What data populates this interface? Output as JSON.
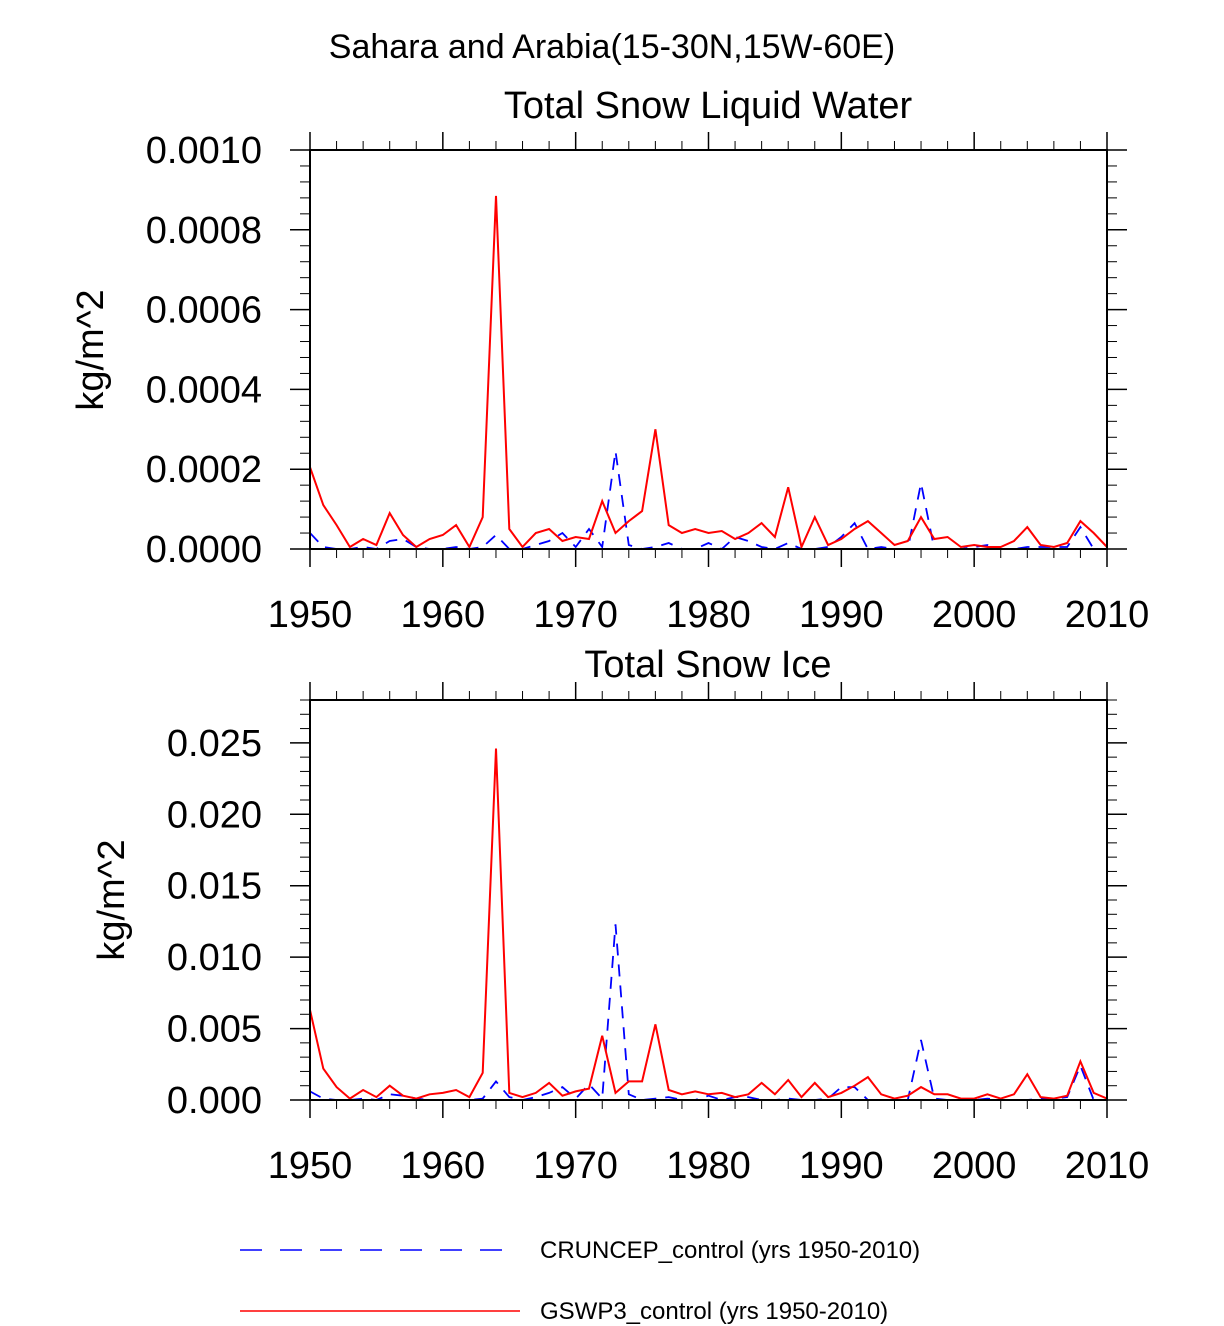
{
  "figure": {
    "supertitle": "Sahara and Arabia(15-30N,15W-60E)",
    "colors": {
      "cruncep": "#0000ff",
      "gswp3": "#ff0000",
      "axes": "#000000"
    }
  },
  "legend": {
    "placement": "bottom",
    "entries": [
      {
        "name": "CRUNCEP_control (yrs 1950-2010)",
        "color": "#0000ff",
        "style": "dashed"
      },
      {
        "name": "GSWP3_control (yrs 1950-2010)",
        "color": "#ff0000",
        "style": "solid"
      }
    ]
  },
  "chart_data": [
    {
      "type": "line",
      "title": "Total Snow Liquid Water",
      "xlabel": "",
      "ylabel": "kg/m^2",
      "xlim": [
        1950,
        2010
      ],
      "ylim": [
        0,
        0.001
      ],
      "xticks": [
        1950,
        1960,
        1970,
        1980,
        1990,
        2000,
        2010
      ],
      "xtick_labels": [
        "1950",
        "1960",
        "1970",
        "1980",
        "1990",
        "2000",
        "2010"
      ],
      "yticks": [
        0,
        0.0002,
        0.0004,
        0.0006,
        0.0008,
        0.001
      ],
      "ytick_labels": [
        "0.0000",
        "0.0002",
        "0.0004",
        "0.0006",
        "0.0008",
        "0.0010"
      ],
      "grid": false,
      "x": [
        1950,
        1951,
        1952,
        1953,
        1954,
        1955,
        1956,
        1957,
        1958,
        1959,
        1960,
        1961,
        1962,
        1963,
        1964,
        1965,
        1966,
        1967,
        1968,
        1969,
        1970,
        1971,
        1972,
        1973,
        1974,
        1975,
        1976,
        1977,
        1978,
        1979,
        1980,
        1981,
        1982,
        1983,
        1984,
        1985,
        1986,
        1987,
        1988,
        1989,
        1990,
        1991,
        1992,
        1993,
        1994,
        1995,
        1996,
        1997,
        1998,
        1999,
        2000,
        2001,
        2002,
        2003,
        2004,
        2005,
        2006,
        2007,
        2008,
        2009,
        2010
      ],
      "series": [
        {
          "name": "CRUNCEP_control (yrs 1950-2010)",
          "color": "#0000ff",
          "style": "dashed",
          "values": [
            4e-05,
            5e-06,
            0,
            0,
            5e-06,
            0,
            2e-05,
            2.5e-05,
            5e-06,
            0,
            0,
            5e-06,
            0,
            5e-06,
            3.5e-05,
            0,
            0,
            1e-05,
            2e-05,
            4e-05,
            5e-06,
            5e-05,
            5e-06,
            0.000245,
            1e-05,
            0,
            5e-06,
            1.5e-05,
            0,
            0,
            1.5e-05,
            0,
            3e-05,
            2e-05,
            5e-06,
            0,
            1.5e-05,
            0,
            0,
            5e-06,
            3e-05,
            6.5e-05,
            0,
            5e-06,
            0,
            0,
            0.000165,
            0,
            0,
            0,
            5e-06,
            1e-05,
            0,
            0,
            5e-06,
            5e-06,
            5e-06,
            5e-06,
            5.5e-05,
            0,
            0
          ]
        },
        {
          "name": "GSWP3_control (yrs 1950-2010)",
          "color": "#ff0000",
          "style": "solid",
          "values": [
            0.000205,
            0.00011,
            6e-05,
            5e-06,
            2.5e-05,
            1e-05,
            9e-05,
            3.5e-05,
            5e-06,
            2.5e-05,
            3.5e-05,
            6e-05,
            5e-06,
            8e-05,
            0.000885,
            5e-05,
            5e-06,
            4e-05,
            5e-05,
            2e-05,
            3e-05,
            2.5e-05,
            0.00012,
            4e-05,
            7e-05,
            9.5e-05,
            0.0003,
            6e-05,
            4e-05,
            5e-05,
            4e-05,
            4.5e-05,
            2.5e-05,
            4e-05,
            6.5e-05,
            3e-05,
            0.000155,
            5e-06,
            8e-05,
            1e-05,
            2.5e-05,
            5e-05,
            7e-05,
            4e-05,
            1e-05,
            2e-05,
            8e-05,
            2.5e-05,
            3e-05,
            5e-06,
            1e-05,
            5e-06,
            5e-06,
            2e-05,
            5.5e-05,
            1e-05,
            5e-06,
            1.5e-05,
            7e-05,
            4e-05,
            5e-06
          ]
        }
      ]
    },
    {
      "type": "line",
      "title": "Total Snow Ice",
      "xlabel": "",
      "ylabel": "kg/m^2",
      "xlim": [
        1950,
        2010
      ],
      "ylim": [
        0,
        0.028
      ],
      "xticks": [
        1950,
        1960,
        1970,
        1980,
        1990,
        2000,
        2010
      ],
      "xtick_labels": [
        "1950",
        "1960",
        "1970",
        "1980",
        "1990",
        "2000",
        "2010"
      ],
      "yticks": [
        0,
        0.005,
        0.01,
        0.015,
        0.02,
        0.025
      ],
      "ytick_labels": [
        "0.000",
        "0.005",
        "0.010",
        "0.015",
        "0.020",
        "0.025"
      ],
      "grid": false,
      "x": [
        1950,
        1951,
        1952,
        1953,
        1954,
        1955,
        1956,
        1957,
        1958,
        1959,
        1960,
        1961,
        1962,
        1963,
        1964,
        1965,
        1966,
        1967,
        1968,
        1969,
        1970,
        1971,
        1972,
        1973,
        1974,
        1975,
        1976,
        1977,
        1978,
        1979,
        1980,
        1981,
        1982,
        1983,
        1984,
        1985,
        1986,
        1987,
        1988,
        1989,
        1990,
        1991,
        1992,
        1993,
        1994,
        1995,
        1996,
        1997,
        1998,
        1999,
        2000,
        2001,
        2002,
        2003,
        2004,
        2005,
        2006,
        2007,
        2008,
        2009,
        2010
      ],
      "series": [
        {
          "name": "CRUNCEP_control (yrs 1950-2010)",
          "color": "#0000ff",
          "style": "dashed",
          "values": [
            0.0006,
            0.0001,
            0,
            0,
            0.0001,
            0,
            0.0004,
            0.0003,
            0.0001,
            0,
            0,
            0,
            0,
            0.0001,
            0.0013,
            0.0002,
            0,
            0.0002,
            0.0005,
            0.0009,
            0.0001,
            0.0011,
            0.0001,
            0.0123,
            0.0004,
            0,
            0.0001,
            0.0002,
            0,
            0,
            0.0003,
            0,
            0.0002,
            0.0002,
            0,
            0,
            0.0001,
            0,
            0,
            0.0001,
            0.0009,
            0.0009,
            0,
            0,
            0,
            0,
            0.0042,
            0.0001,
            0,
            0,
            0,
            0.0001,
            0,
            0,
            0,
            0.0001,
            0.0001,
            0.0002,
            0.0024,
            0,
            0
          ]
        },
        {
          "name": "GSWP3_control (yrs 1950-2010)",
          "color": "#ff0000",
          "style": "solid",
          "values": [
            0.0063,
            0.0022,
            0.0009,
            0.0001,
            0.0007,
            0.0002,
            0.001,
            0.0003,
            0.0001,
            0.0004,
            0.0005,
            0.0007,
            0.0002,
            0.0019,
            0.0246,
            0.0005,
            0.0002,
            0.0005,
            0.0012,
            0.0003,
            0.0006,
            0.0008,
            0.0045,
            0.0005,
            0.0013,
            0.0013,
            0.0053,
            0.0007,
            0.0004,
            0.0006,
            0.0004,
            0.0005,
            0.0002,
            0.0004,
            0.0012,
            0.0004,
            0.0014,
            0.0002,
            0.0012,
            0.0002,
            0.0005,
            0.001,
            0.0016,
            0.0004,
            0.0001,
            0.0003,
            0.0009,
            0.0004,
            0.0004,
            0.0001,
            0.0001,
            0.0004,
            0.0001,
            0.0004,
            0.0018,
            0.0002,
            0.0001,
            0.0003,
            0.0027,
            0.0005,
            0.0001
          ]
        }
      ]
    }
  ]
}
